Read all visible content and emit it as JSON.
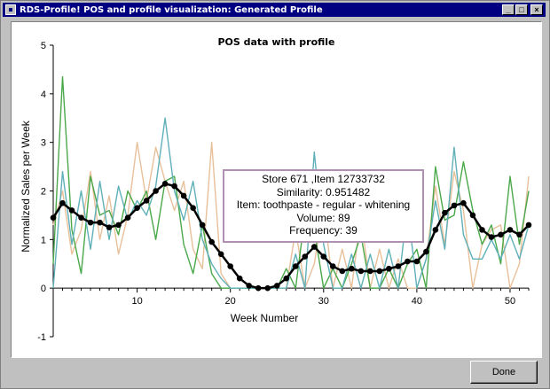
{
  "window": {
    "title": "RDS-Profile! POS and profile visualization: Generated Profile",
    "minimize": "_",
    "maximize": "□",
    "close": "×"
  },
  "chart_data": {
    "type": "line",
    "title": "POS data with profile",
    "xlabel": "Week Number",
    "ylabel": "Normalized Sales per Week",
    "xlim": [
      1,
      52
    ],
    "ylim": [
      -1,
      5
    ],
    "xticks": [
      10,
      20,
      30,
      40,
      50
    ],
    "yticks": [
      -1,
      0,
      1,
      2,
      3,
      4,
      5
    ],
    "x": [
      1,
      2,
      3,
      4,
      5,
      6,
      7,
      8,
      9,
      10,
      11,
      12,
      13,
      14,
      15,
      16,
      17,
      18,
      19,
      20,
      21,
      22,
      23,
      24,
      25,
      26,
      27,
      28,
      29,
      30,
      31,
      32,
      33,
      34,
      35,
      36,
      37,
      38,
      39,
      40,
      41,
      42,
      43,
      44,
      45,
      46,
      47,
      48,
      49,
      50,
      51,
      52
    ],
    "series": [
      {
        "color": "#000000",
        "values": [
          1.45,
          1.75,
          1.6,
          1.45,
          1.35,
          1.35,
          1.25,
          1.3,
          1.45,
          1.65,
          1.8,
          2.0,
          2.15,
          2.1,
          1.9,
          1.65,
          1.3,
          0.95,
          0.7,
          0.45,
          0.2,
          0.05,
          0.0,
          0.0,
          0.05,
          0.2,
          0.45,
          0.65,
          0.85,
          0.65,
          0.45,
          0.35,
          0.4,
          0.35,
          0.35,
          0.35,
          0.4,
          0.45,
          0.55,
          0.55,
          0.75,
          1.2,
          1.55,
          1.7,
          1.75,
          1.5,
          1.2,
          1.05,
          1.1,
          1.2,
          1.1,
          1.3
        ],
        "marker": true
      },
      {
        "color": "#5fb0b8",
        "values": [
          0.0,
          2.4,
          0.9,
          2.0,
          0.8,
          2.2,
          1.0,
          2.1,
          1.4,
          1.8,
          1.5,
          2.1,
          3.5,
          2.0,
          1.4,
          2.2,
          1.0,
          0.5,
          0.2,
          0.0,
          0.0,
          0.0,
          0.0,
          0.0,
          0.0,
          0.0,
          0.7,
          0.0,
          2.8,
          0.9,
          0.0,
          0.0,
          0.7,
          0.0,
          0.7,
          0.0,
          0.8,
          0.0,
          1.7,
          0.0,
          0.6,
          1.8,
          0.8,
          2.9,
          1.1,
          0.6,
          0.6,
          1.0,
          0.6,
          1.1,
          0.6,
          1.3
        ]
      },
      {
        "color": "#4aa84a",
        "values": [
          0.5,
          4.35,
          1.2,
          0.3,
          2.3,
          1.5,
          1.6,
          1.1,
          2.0,
          1.6,
          2.0,
          1.0,
          2.2,
          2.3,
          0.9,
          0.3,
          1.3,
          0.3,
          0.0,
          0.0,
          0.0,
          0.0,
          0.0,
          0.0,
          0.0,
          0.4,
          0.0,
          1.5,
          1.2,
          0.0,
          0.4,
          0.0,
          0.5,
          1.1,
          0.0,
          0.0,
          0.4,
          0.0,
          0.5,
          0.8,
          0.0,
          2.5,
          1.4,
          1.5,
          2.6,
          1.6,
          0.9,
          1.3,
          0.5,
          2.3,
          0.9,
          2.0
        ]
      },
      {
        "color": "#e8c09a",
        "values": [
          1.3,
          2.0,
          0.7,
          1.2,
          2.4,
          1.0,
          1.9,
          0.7,
          1.5,
          3.0,
          1.8,
          2.9,
          2.2,
          1.6,
          2.2,
          0.8,
          0.4,
          3.0,
          0.3,
          0.0,
          0.0,
          0.0,
          0.0,
          0.0,
          0.0,
          0.0,
          1.2,
          0.0,
          0.5,
          1.7,
          0.0,
          0.8,
          0.0,
          1.5,
          0.0,
          0.8,
          0.0,
          0.6,
          0.0,
          0.0,
          0.6,
          2.1,
          0.9,
          2.4,
          1.6,
          0.0,
          0.9,
          1.2,
          1.3,
          0.0,
          0.5,
          2.3
        ]
      }
    ]
  },
  "tooltip": {
    "line1": "Store 671 ,Item 12733732",
    "line2": "Similarity: 0.951482",
    "line3": "Item: toothpaste - regular - whitening",
    "line4": "Volume: 89",
    "line5": "Frequency: 39"
  },
  "buttons": {
    "done": "Done"
  }
}
